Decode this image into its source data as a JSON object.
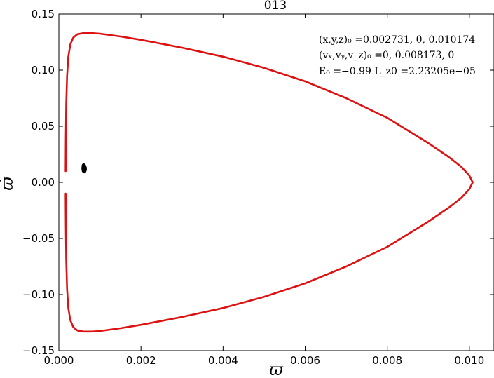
{
  "chart_data": {
    "type": "line",
    "title": "013",
    "xlabel": "ϖ",
    "ylabel": "ϖ̇",
    "xlim": [
      0.0,
      0.0106
    ],
    "ylim": [
      -0.15,
      0.15
    ],
    "xticks": [
      0.0,
      0.002,
      0.004,
      0.006,
      0.008,
      0.01
    ],
    "xtick_labels": [
      "0.000",
      "0.002",
      "0.004",
      "0.006",
      "0.008",
      "0.010"
    ],
    "yticks": [
      -0.15,
      -0.1,
      -0.05,
      0.0,
      0.05,
      0.1,
      0.15
    ],
    "ytick_labels": [
      "−0.15",
      "−0.10",
      "−0.05",
      "0.00",
      "0.05",
      "0.10",
      "0.15"
    ],
    "grid": false,
    "annotations": [
      "(x,y,z)₀ =0.002731, 0, 0.010174",
      "(vₓ,vᵧ,v_z)₀ =0, 0.008173, 0",
      "E₀ =−0.99  L_z0 =2.23205e−05"
    ],
    "series": [
      {
        "color": "#dd1111",
        "upper": {
          "x": [
            0.000165,
            0.00017,
            0.00018,
            0.0002,
            0.00023,
            0.00028,
            0.00035,
            0.00045,
            0.0006,
            0.0008,
            0.001,
            0.0015,
            0.002,
            0.003,
            0.004,
            0.005,
            0.006,
            0.007,
            0.008,
            0.009,
            0.0095,
            0.0098,
            0.01,
            0.01008
          ],
          "y": [
            0.01,
            0.04,
            0.07,
            0.095,
            0.112,
            0.123,
            0.129,
            0.132,
            0.133,
            0.133,
            0.1325,
            0.13,
            0.127,
            0.12,
            0.112,
            0.102,
            0.09,
            0.075,
            0.0575,
            0.035,
            0.0225,
            0.014,
            0.006,
            0.0
          ]
        },
        "lower": {
          "x": [
            0.000165,
            0.00017,
            0.00018,
            0.0002,
            0.00023,
            0.00028,
            0.00035,
            0.00045,
            0.0006,
            0.0008,
            0.001,
            0.0015,
            0.002,
            0.003,
            0.004,
            0.005,
            0.006,
            0.007,
            0.008,
            0.009,
            0.0095,
            0.0098,
            0.01,
            0.01008
          ],
          "y": [
            -0.01,
            -0.04,
            -0.07,
            -0.095,
            -0.112,
            -0.123,
            -0.129,
            -0.132,
            -0.133,
            -0.133,
            -0.1325,
            -0.13,
            -0.127,
            -0.12,
            -0.112,
            -0.102,
            -0.09,
            -0.075,
            -0.0575,
            -0.035,
            -0.0225,
            -0.014,
            -0.006,
            0.0
          ]
        }
      },
      {
        "color": "#000000",
        "x": [
          0.00058,
          0.0006,
          0.00062,
          0.00064,
          0.00066,
          0.00066,
          0.00064,
          0.00062,
          0.0006,
          0.00058,
          0.00057,
          0.00058
        ],
        "y": [
          0.0155,
          0.0162,
          0.016,
          0.015,
          0.013,
          0.011,
          0.0092,
          0.0088,
          0.009,
          0.01,
          0.0125,
          0.0155
        ]
      }
    ]
  }
}
